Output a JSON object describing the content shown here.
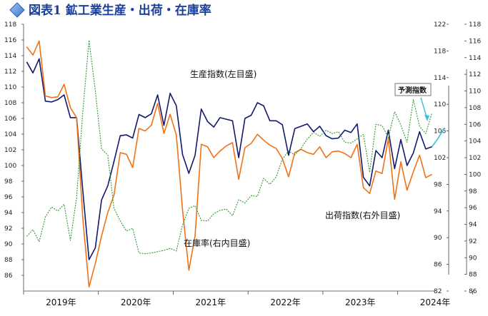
{
  "title": "図表1 鉱工業生産・出荷・在庫率",
  "colors": {
    "production": "#13196e",
    "shipments": "#f07216",
    "inventory": "#2f9a2f",
    "forecast": "#37c2dd",
    "title": "#1a3e9a"
  },
  "chart_data": {
    "type": "line",
    "x_labels": [
      "2019年",
      "2020年",
      "2021年",
      "2022年",
      "2023年",
      "2024年"
    ],
    "x_start": "2019-01",
    "axes": {
      "left": {
        "min": 84,
        "max": 118,
        "step": 2,
        "ticks": [
          86,
          88,
          90,
          92,
          94,
          96,
          98,
          100,
          102,
          104,
          106,
          108,
          110,
          112,
          114,
          116,
          118
        ]
      },
      "right_inner": {
        "min": 82,
        "max": 122,
        "step": 4,
        "ticks": [
          82,
          86,
          90,
          94,
          98,
          102,
          106,
          110,
          114,
          118,
          122
        ]
      },
      "right_outer": {
        "min": 86,
        "max": 118,
        "step": 2,
        "ticks": [
          86,
          88,
          90,
          92,
          94,
          96,
          98,
          100,
          102,
          104,
          106,
          108,
          110,
          112,
          114,
          116,
          118
        ]
      }
    },
    "annotations": {
      "production": "生産指数(左目盛)",
      "shipments": "出荷指数(右外目盛)",
      "inventory": "在庫率(右内目盛)",
      "forecast": "予測指数"
    },
    "series": [
      {
        "name": "生産指数(左目盛)",
        "axis": "left",
        "values": [
          113.2,
          111.8,
          113.6,
          108.2,
          108.1,
          108.4,
          109.0,
          106.1,
          106.1,
          96.8,
          88.0,
          89.5,
          95.6,
          97.4,
          100.5,
          103.8,
          103.9,
          103.5,
          106.5,
          106.1,
          106.6,
          109.0,
          105.1,
          109.2,
          107.6,
          101.4,
          99.0,
          101.3,
          107.2,
          105.6,
          104.9,
          106.1,
          105.9,
          105.7,
          101.0,
          106.0,
          106.4,
          108.0,
          107.6,
          105.7,
          105.7,
          105.2,
          101.3,
          104.7,
          105.0,
          105.3,
          104.3,
          105.0,
          103.8,
          103.4,
          103.5,
          104.5,
          104.2,
          105.3,
          98.5,
          97.4,
          101.9,
          101.0,
          104.5,
          99.6,
          103.3,
          100.0,
          101.6,
          104.3,
          102.1,
          102.4
        ]
      },
      {
        "name": "出荷指数(右外目盛)",
        "axis": "right_outer",
        "values": [
          115.3,
          114.3,
          116.0,
          109.4,
          109.2,
          109.3,
          110.8,
          108.0,
          106.8,
          94.7,
          86.5,
          89.3,
          92.6,
          95.4,
          97.5,
          102.6,
          102.4,
          100.8,
          105.5,
          105.2,
          105.9,
          108.5,
          104.9,
          107.2,
          104.7,
          95.7,
          88.5,
          92.6,
          103.6,
          103.3,
          102.0,
          102.8,
          103.4,
          103.8,
          99.4,
          103.2,
          103.7,
          104.8,
          104.1,
          103.5,
          103.1,
          101.9,
          99.7,
          102.6,
          103.0,
          102.6,
          102.4,
          103.3,
          102.0,
          102.7,
          102.8,
          102.5,
          102.0,
          103.6,
          98.4,
          97.7,
          100.4,
          100.1,
          104.3,
          97.0,
          101.5,
          98.1,
          100.3,
          102.3,
          99.6,
          100.0
        ]
      },
      {
        "name": "在庫率(右内目盛)",
        "axis": "right_inner",
        "values": [
          90.2,
          91.2,
          89.4,
          93.1,
          94.6,
          94.0,
          95.0,
          89.6,
          96.0,
          108.9,
          119.6,
          112.0,
          103.3,
          102.4,
          94.4,
          92.5,
          91.0,
          91.4,
          87.7,
          87.6,
          87.7,
          87.9,
          88.1,
          88.4,
          88.0,
          91.9,
          94.4,
          94.8,
          92.6,
          92.5,
          93.6,
          94.1,
          94.3,
          93.3,
          95.7,
          95.2,
          96.3,
          96.2,
          98.9,
          98.0,
          99.1,
          101.8,
          103.0,
          102.4,
          103.4,
          104.8,
          105.8,
          105.2,
          106.1,
          105.6,
          105.9,
          104.3,
          104.2,
          104.8,
          105.5,
          99.8,
          107.0,
          106.8,
          105.0,
          108.9,
          106.9,
          104.3,
          110.7,
          106.7,
          105.6,
          108.7
        ]
      },
      {
        "name": "予測指数",
        "axis": "left",
        "x_index": [
          65,
          66,
          67
        ],
        "values": [
          102.4,
          103.5,
          104.8
        ]
      }
    ]
  }
}
